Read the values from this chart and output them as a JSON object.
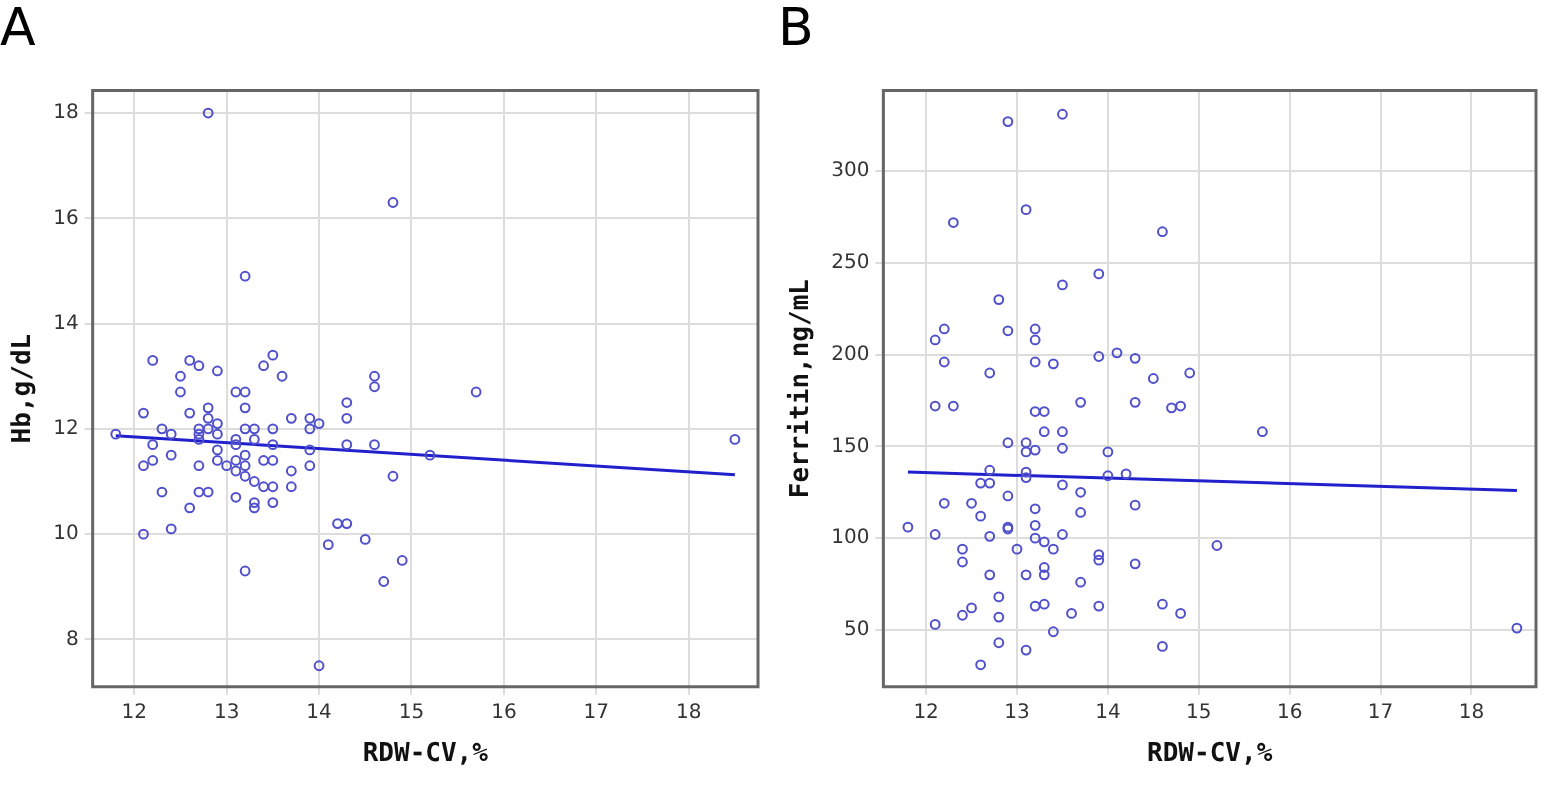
{
  "chart_data": [
    {
      "type": "scatter",
      "title": "A",
      "xlabel": "RDW-CV,%",
      "ylabel": "Hb,g/dL",
      "xlim": [
        11.55,
        18.75
      ],
      "ylim": [
        7.1,
        18.43
      ],
      "xticks": [
        12,
        13,
        14,
        15,
        16,
        17,
        18
      ],
      "yticks": [
        8,
        10,
        12,
        14,
        16,
        18
      ],
      "grid": true,
      "legend": false,
      "series": [
        {
          "color": "#5050cc",
          "marker": "circle",
          "x": [
            11.8,
            12.2,
            12.1,
            12.3,
            12.4,
            12.2,
            12.2,
            12.1,
            12.4,
            12.3,
            12.1,
            12.4,
            12.5,
            12.5,
            12.6,
            12.7,
            12.6,
            12.8,
            12.8,
            12.7,
            12.7,
            12.7,
            12.8,
            12.9,
            12.9,
            12.9,
            12.9,
            12.9,
            12.7,
            13.0,
            12.7,
            12.8,
            12.6,
            13.1,
            13.2,
            13.2,
            13.1,
            13.1,
            13.2,
            13.3,
            13.3,
            13.2,
            13.1,
            13.2,
            13.1,
            13.2,
            13.3,
            13.1,
            13.3,
            13.3,
            13.2,
            13.4,
            13.5,
            13.6,
            13.5,
            13.5,
            13.4,
            13.5,
            13.4,
            13.5,
            13.5,
            13.7,
            13.7,
            13.7,
            13.9,
            13.9,
            14.0,
            13.9,
            13.9,
            14.0,
            14.1,
            14.2,
            14.3,
            14.3,
            14.3,
            14.3,
            14.5,
            14.6,
            14.6,
            14.6,
            14.7,
            14.8,
            14.9,
            15.2,
            15.7,
            18.5,
            12.8,
            14.8,
            13.2
          ],
          "values": [
            11.9,
            13.3,
            12.3,
            12.0,
            11.9,
            11.7,
            11.4,
            11.3,
            11.5,
            10.8,
            10.0,
            10.1,
            13.0,
            12.7,
            13.3,
            13.2,
            12.3,
            12.4,
            12.2,
            12.0,
            11.9,
            11.8,
            12.0,
            12.1,
            11.9,
            11.6,
            11.4,
            13.1,
            11.3,
            11.3,
            10.8,
            10.8,
            10.5,
            12.7,
            12.7,
            12.4,
            11.8,
            11.7,
            12.0,
            12.0,
            11.8,
            11.5,
            11.4,
            11.3,
            11.2,
            11.1,
            11.0,
            10.7,
            10.6,
            10.5,
            9.3,
            13.2,
            13.4,
            13.0,
            12.0,
            11.7,
            11.4,
            11.4,
            10.9,
            10.9,
            10.6,
            12.2,
            11.2,
            10.9,
            12.2,
            12.0,
            12.1,
            11.6,
            11.3,
            7.5,
            9.8,
            10.2,
            10.2,
            12.5,
            12.2,
            11.7,
            9.9,
            13.0,
            12.8,
            11.7,
            9.1,
            11.1,
            9.5,
            11.5,
            12.7,
            11.8,
            18.0,
            16.3,
            14.9
          ]
        },
        {
          "type": "line",
          "marker": "none",
          "color": "#2020cc",
          "x": [
            11.8,
            18.5
          ],
          "values": [
            11.87,
            11.13
          ]
        }
      ]
    },
    {
      "type": "scatter",
      "title": "B",
      "xlabel": "RDW-CV,%",
      "ylabel": "Ferritin,ng/mL",
      "xlim": [
        11.53,
        18.71
      ],
      "ylim": [
        19,
        344
      ],
      "xticks": [
        12,
        13,
        14,
        15,
        16,
        17,
        18
      ],
      "yticks": [
        50,
        100,
        150,
        200,
        250,
        300
      ],
      "grid": true,
      "legend": false,
      "series": [
        {
          "color": "#5050cc",
          "marker": "circle",
          "x": [
            11.8,
            12.1,
            12.1,
            12.1,
            12.2,
            12.2,
            12.3,
            12.4,
            12.4,
            12.4,
            12.5,
            12.5,
            12.6,
            12.6,
            12.6,
            12.7,
            12.7,
            12.7,
            12.7,
            12.7,
            12.8,
            12.8,
            12.8,
            12.9,
            12.9,
            12.9,
            12.9,
            13.0,
            13.1,
            13.1,
            13.1,
            13.1,
            13.1,
            13.1,
            13.2,
            13.2,
            13.2,
            13.2,
            13.2,
            13.2,
            13.2,
            13.3,
            13.3,
            13.3,
            13.3,
            13.3,
            13.3,
            13.4,
            13.4,
            13.4,
            13.5,
            13.5,
            13.5,
            13.5,
            13.6,
            13.7,
            13.7,
            13.7,
            13.7,
            13.9,
            13.9,
            13.9,
            13.9,
            14.0,
            14.0,
            14.1,
            14.2,
            14.3,
            14.3,
            14.3,
            14.3,
            14.5,
            14.6,
            14.6,
            14.7,
            14.8,
            14.8,
            14.9,
            15.2,
            15.7,
            18.5,
            12.9,
            13.5,
            12.3,
            13.1,
            14.6,
            13.9,
            13.5,
            12.8,
            12.1,
            12.2,
            12.9,
            13.2,
            13.2
          ],
          "values": [
            106,
            172,
            102,
            53,
            196,
            119,
            172,
            94,
            87,
            58,
            119,
            62,
            130,
            112,
            31,
            190,
            137,
            130,
            101,
            80,
            68,
            57,
            43,
            152,
            123,
            106,
            105,
            94,
            152,
            147,
            136,
            133,
            80,
            39,
            196,
            169,
            148,
            116,
            107,
            100,
            63,
            169,
            158,
            98,
            84,
            80,
            64,
            195,
            94,
            49,
            158,
            149,
            129,
            102,
            59,
            174,
            125,
            114,
            76,
            199,
            91,
            88,
            63,
            147,
            134,
            201,
            135,
            198,
            174,
            118,
            86,
            187,
            64,
            41,
            171,
            172,
            59,
            190,
            96,
            158,
            51,
            327,
            331,
            272,
            279,
            267,
            244,
            238,
            230,
            208,
            214,
            213,
            214,
            208
          ]
        },
        {
          "type": "line",
          "marker": "none",
          "color": "#2020cc",
          "x": [
            11.8,
            18.5
          ],
          "values": [
            136,
            126
          ]
        }
      ]
    }
  ]
}
